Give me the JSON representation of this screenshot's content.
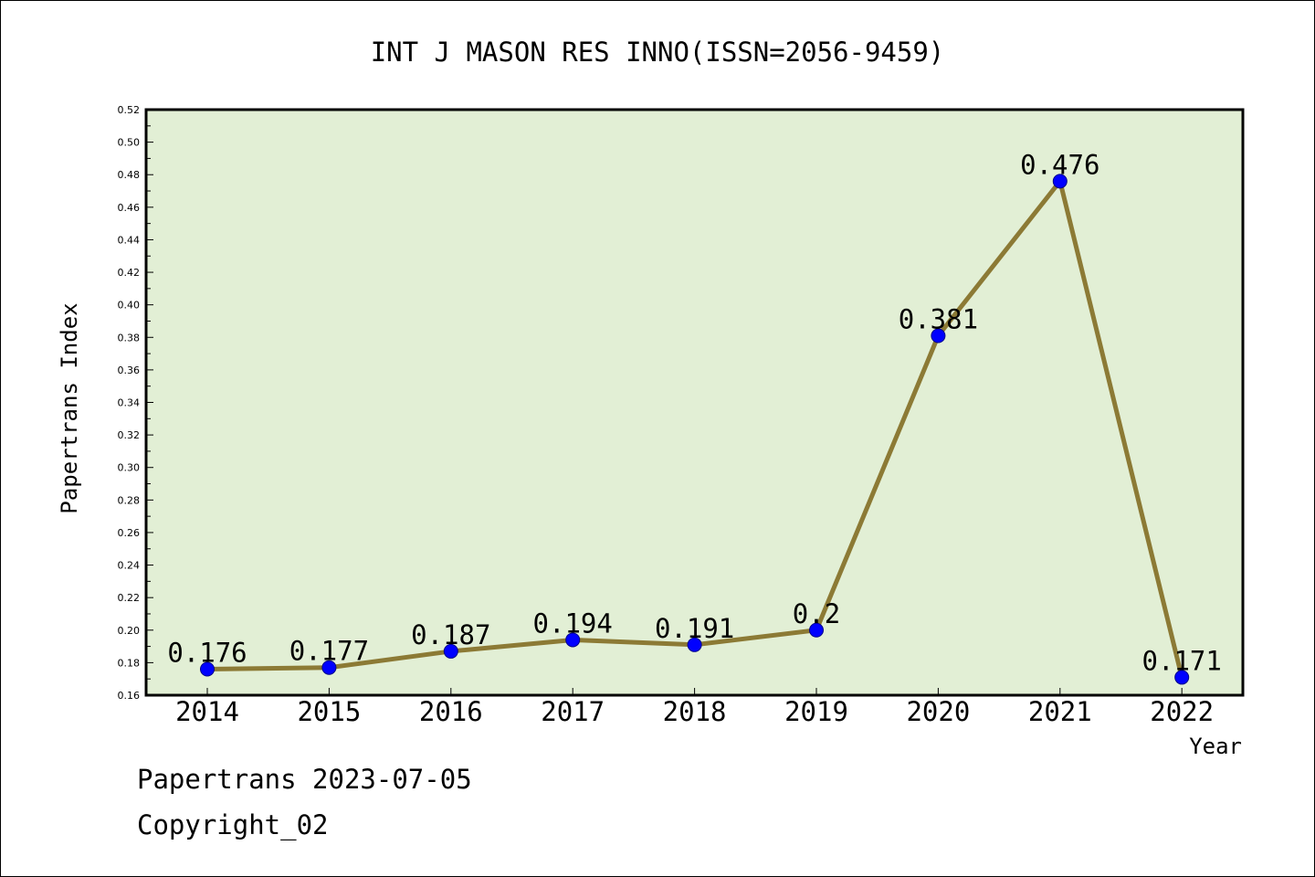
{
  "chart_data": {
    "type": "line",
    "title": "INT J MASON RES INNO(ISSN=2056-9459)",
    "xlabel": "Year",
    "ylabel": "Papertrans Index",
    "categories": [
      "2014",
      "2015",
      "2016",
      "2017",
      "2018",
      "2019",
      "2020",
      "2021",
      "2022"
    ],
    "values": [
      0.176,
      0.177,
      0.187,
      0.194,
      0.191,
      0.2,
      0.381,
      0.476,
      0.171
    ],
    "value_labels": [
      "0.176",
      "0.177",
      "0.187",
      "0.194",
      "0.191",
      "0.2",
      "0.381",
      "0.476",
      "0.171"
    ],
    "ylim": [
      0.16,
      0.52
    ],
    "yticks": [
      "0.16",
      "0.18",
      "0.20",
      "0.22",
      "0.24",
      "0.26",
      "0.28",
      "0.30",
      "0.32",
      "0.34",
      "0.36",
      "0.38",
      "0.40",
      "0.42",
      "0.44",
      "0.46",
      "0.48",
      "0.50",
      "0.52"
    ],
    "grid": false,
    "colors": {
      "plot_background": "#e2efd5",
      "line": "#8c7a35",
      "marker": "#0000ff"
    }
  },
  "footer": {
    "line1": "Papertrans 2023-07-05",
    "line2": "Copyright_02"
  }
}
